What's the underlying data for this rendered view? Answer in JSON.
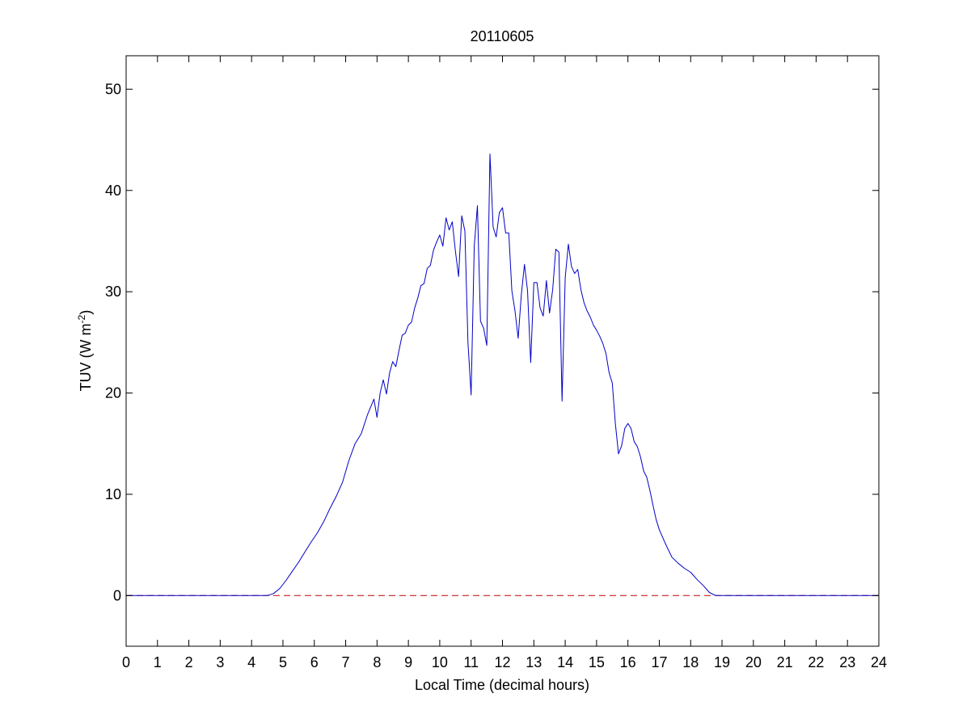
{
  "chart_data": {
    "type": "line",
    "title": "20110605",
    "xlabel": "Local Time (decimal hours)",
    "ylabel_main": "TUV (W m",
    "ylabel_sup": "-2",
    "ylabel_close": ")",
    "xlim": [
      0,
      24
    ],
    "ylim": [
      -5,
      53.3
    ],
    "xticks": [
      0,
      1,
      2,
      3,
      4,
      5,
      6,
      7,
      8,
      9,
      10,
      11,
      12,
      13,
      14,
      15,
      16,
      17,
      18,
      19,
      20,
      21,
      22,
      23,
      24
    ],
    "yticks": [
      0,
      10,
      20,
      30,
      40,
      50
    ],
    "grid": false,
    "colors": {
      "series": "#0000c8",
      "reference": "#c00000",
      "axes": "#000000"
    },
    "series": [
      {
        "style": "solid",
        "color": "#0000c8",
        "x": [
          0,
          4.5,
          4.7,
          4.9,
          5.1,
          5.3,
          5.5,
          5.7,
          5.9,
          6.1,
          6.3,
          6.5,
          6.7,
          6.9,
          7.1,
          7.3,
          7.5,
          7.7,
          7.9,
          8.0,
          8.1,
          8.2,
          8.3,
          8.4,
          8.5,
          8.6,
          8.7,
          8.8,
          8.9,
          9.0,
          9.1,
          9.2,
          9.3,
          9.4,
          9.5,
          9.6,
          9.7,
          9.8,
          9.9,
          10.0,
          10.1,
          10.2,
          10.3,
          10.4,
          10.5,
          10.6,
          10.7,
          10.8,
          10.9,
          11.0,
          11.1,
          11.2,
          11.3,
          11.4,
          11.5,
          11.6,
          11.65,
          11.7,
          11.8,
          11.9,
          12.0,
          12.1,
          12.2,
          12.3,
          12.4,
          12.5,
          12.6,
          12.7,
          12.8,
          12.9,
          13.0,
          13.1,
          13.2,
          13.3,
          13.4,
          13.5,
          13.6,
          13.7,
          13.8,
          13.9,
          14.0,
          14.1,
          14.2,
          14.3,
          14.4,
          14.5,
          14.6,
          14.7,
          14.8,
          14.9,
          15.0,
          15.1,
          15.2,
          15.3,
          15.4,
          15.5,
          15.6,
          15.7,
          15.8,
          15.9,
          16.0,
          16.1,
          16.2,
          16.3,
          16.4,
          16.5,
          16.6,
          16.7,
          16.8,
          16.9,
          17.0,
          17.2,
          17.4,
          17.6,
          17.8,
          18.0,
          18.2,
          18.4,
          18.6,
          18.8,
          19.0,
          19.2,
          19.4,
          19.6,
          19.8,
          20.0,
          24
        ],
        "y": [
          0,
          0,
          0.2,
          0.7,
          1.5,
          2.4,
          3.3,
          4.3,
          5.3,
          6.2,
          7.3,
          8.6,
          9.8,
          11.2,
          13.3,
          15.0,
          16.0,
          17.9,
          19.4,
          17.6,
          20.0,
          21.3,
          19.9,
          22.0,
          23.1,
          22.6,
          24.2,
          25.7,
          25.9,
          26.7,
          27.0,
          28.4,
          29.4,
          30.6,
          30.8,
          32.3,
          32.6,
          34.1,
          34.9,
          35.6,
          34.5,
          37.3,
          36.1,
          36.9,
          34.0,
          31.5,
          37.5,
          36.0,
          25.0,
          19.8,
          34.5,
          38.5,
          27.1,
          26.4,
          24.7,
          43.6,
          40.2,
          36.4,
          35.4,
          37.8,
          38.3,
          35.8,
          35.8,
          30.1,
          28.1,
          25.4,
          29.7,
          32.7,
          30.1,
          23.0,
          30.9,
          30.9,
          28.4,
          27.6,
          31.1,
          27.9,
          30.2,
          34.2,
          33.9,
          19.2,
          31.4,
          34.7,
          32.5,
          31.8,
          32.2,
          30.2,
          28.9,
          28.1,
          27.5,
          26.7,
          26.2,
          25.6,
          24.9,
          23.9,
          22.0,
          21.0,
          17.0,
          14.0,
          14.8,
          16.5,
          17.0,
          16.5,
          15.2,
          14.7,
          13.7,
          12.3,
          11.7,
          10.4,
          8.9,
          7.5,
          6.5,
          5.1,
          3.8,
          3.2,
          2.7,
          2.3,
          1.6,
          1.0,
          0.3,
          0,
          0,
          0,
          0,
          0,
          0,
          0,
          0
        ]
      },
      {
        "style": "dashed",
        "color": "#c00000",
        "x": [
          0,
          24
        ],
        "y": [
          0,
          0
        ]
      }
    ]
  }
}
